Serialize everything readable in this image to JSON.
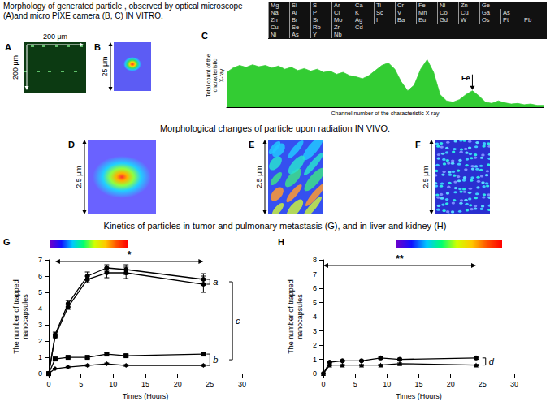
{
  "titles": [
    "Morphology of generated particle , observed by optical microscope (A)and micro PIXE camera (B, C) IN VITRO.",
    "Morphological changes of particle upon radiation IN VIVO.",
    "Kinetics of particles in tumor and pulmonary metastasis (G), and in liver and kidney (H)"
  ],
  "images": [
    {
      "panel": "A",
      "scale_labels": [
        "200 μm",
        "200 μm"
      ]
    },
    {
      "panel": "B",
      "scale_labels": [
        "25 μm"
      ]
    },
    {
      "panel": "D",
      "scale_labels": [
        "2.5 μm"
      ]
    },
    {
      "panel": "E",
      "scale_labels": [
        "2.5 μm"
      ]
    },
    {
      "panel": "F",
      "scale_labels": [
        "2.5 μm"
      ]
    }
  ],
  "chart_data": [
    {
      "panel": "C",
      "type": "area",
      "x_label": "Channel number of the characteristic X-ray",
      "y_label": "Total count of the characteristic X-ray",
      "element_labels": [
        [
          "Mg",
          "Si",
          "S",
          "Ar",
          "Ca",
          "Ti",
          "Cr",
          "Fe",
          "Ni",
          "Zn",
          "Ge"
        ],
        [
          "Na",
          "Al",
          "P",
          "Cl",
          "K",
          "Sc",
          "V",
          "Mn",
          "Co",
          "Cu",
          "Ga",
          "As"
        ],
        [
          "Zn",
          "Br",
          "Sr",
          "Mo",
          "Ag",
          "I",
          "Ba",
          "Eu",
          "Gd",
          "W",
          "Os",
          "Pt",
          "Pb"
        ],
        [
          "Cu",
          "Se",
          "Rb",
          "Zr",
          "Cd"
        ],
        [
          "Ni",
          "As",
          "Y",
          "Nb"
        ]
      ],
      "x": [
        0,
        1,
        2,
        3,
        4,
        5,
        6,
        7,
        8,
        9,
        10,
        11,
        12,
        13,
        14,
        15,
        16,
        17,
        18,
        19,
        20,
        21,
        22,
        23,
        24,
        25,
        26,
        27,
        28,
        29,
        30,
        31,
        32,
        33,
        34,
        35,
        36,
        37,
        38,
        39,
        40,
        41,
        42,
        43,
        44,
        45,
        46,
        47,
        48,
        49
      ],
      "values": [
        0.55,
        0.62,
        0.66,
        0.63,
        0.67,
        0.64,
        0.66,
        0.62,
        0.65,
        0.6,
        0.63,
        0.58,
        0.61,
        0.57,
        0.6,
        0.55,
        0.57,
        0.52,
        0.55,
        0.5,
        0.48,
        0.45,
        0.5,
        0.58,
        0.66,
        0.7,
        0.6,
        0.4,
        0.26,
        0.35,
        0.6,
        0.75,
        0.55,
        0.2,
        0.1,
        0.08,
        0.12,
        0.2,
        0.26,
        0.18,
        0.08,
        0.06,
        0.1,
        0.07,
        0.05,
        0.06,
        0.04,
        0.05,
        0.03,
        0.03
      ],
      "color": "#33cc33",
      "xlim": [
        0,
        49
      ],
      "ylim": [
        0,
        1
      ],
      "tick_labels": false,
      "grid": false,
      "annotations": [
        {
          "text": "Fe",
          "x": 38,
          "y": 0.26
        }
      ]
    },
    {
      "panel": "G",
      "type": "line",
      "x_label": "Times (Hours)",
      "y_label": "The number of trapped nanocapsules",
      "x": [
        0,
        1,
        3,
        6,
        9,
        12,
        24
      ],
      "series": [
        {
          "marker": "circle",
          "line_style": "solid",
          "color": "#000000",
          "values": [
            0,
            2.4,
            4.3,
            6.0,
            6.5,
            6.4,
            5.8
          ],
          "errors": [
            0,
            0.15,
            0.2,
            0.25,
            0.2,
            0.3,
            0.35
          ]
        },
        {
          "marker": "circle",
          "line_style": "solid",
          "color": "#000000",
          "values": [
            0,
            2.3,
            4.1,
            5.8,
            6.2,
            6.2,
            5.5
          ],
          "errors": [
            0,
            0.1,
            0.15,
            0.2,
            0.3,
            0.35,
            0.5
          ]
        },
        {
          "marker": "square",
          "line_style": "solid",
          "color": "#000000",
          "values": [
            0,
            0.9,
            1.0,
            1.0,
            1.2,
            1.1,
            1.2
          ],
          "errors": [
            0,
            0.05,
            0.05,
            0.08,
            0.1,
            0.08,
            0.1
          ]
        },
        {
          "marker": "diamond",
          "line_style": "solid",
          "color": "#000000",
          "values": [
            0,
            0.3,
            0.4,
            0.5,
            0.6,
            0.5,
            0.5
          ],
          "errors": [
            0,
            0.03,
            0.04,
            0.05,
            0.05,
            0.05,
            0.05
          ]
        }
      ],
      "xlim": [
        0,
        30
      ],
      "xticks": [
        0,
        5,
        10,
        15,
        20,
        25,
        30
      ],
      "ylim": [
        0,
        7
      ],
      "yticks": [
        0,
        1,
        2,
        3,
        4,
        5,
        6,
        7
      ],
      "grid": false,
      "annotations": [
        {
          "text": "*",
          "x": [
            1,
            24
          ],
          "y": 6.9
        },
        {
          "text": "a",
          "x": 25,
          "y": [
            5.5,
            5.8
          ]
        },
        {
          "text": "b",
          "x": 25,
          "y": [
            0.5,
            1.2
          ]
        },
        {
          "text": "c",
          "x": 28.5,
          "y": [
            0.85,
            5.65
          ]
        }
      ]
    },
    {
      "panel": "H",
      "type": "line",
      "x_label": "Times (Hours)",
      "y_label": "The number of trapped nanocapsules",
      "x": [
        0,
        1,
        3,
        6,
        9,
        12,
        24
      ],
      "series": [
        {
          "marker": "circle",
          "line_style": "solid",
          "color": "#000000",
          "values": [
            0,
            0.8,
            0.9,
            0.9,
            1.1,
            1.0,
            1.1
          ],
          "errors": [
            0,
            0.05,
            0.05,
            0.05,
            0.1,
            0.08,
            0.1
          ]
        },
        {
          "marker": "triangle",
          "line_style": "solid",
          "color": "#000000",
          "values": [
            0,
            0.6,
            0.6,
            0.6,
            0.6,
            0.7,
            0.6
          ],
          "errors": [
            0,
            0.04,
            0.04,
            0.04,
            0.05,
            0.05,
            0.05
          ]
        }
      ],
      "xlim": [
        0,
        30
      ],
      "xticks": [
        0,
        5,
        10,
        15,
        20,
        25,
        30
      ],
      "ylim": [
        0,
        8
      ],
      "yticks": [
        0,
        1,
        2,
        3,
        4,
        5,
        6,
        7,
        8
      ],
      "grid": false,
      "annotations": [
        {
          "text": "**",
          "x": [
            0,
            24
          ],
          "y": 7.6
        },
        {
          "text": "d",
          "x": 25.5,
          "y": [
            0.6,
            1.1
          ]
        }
      ]
    }
  ]
}
